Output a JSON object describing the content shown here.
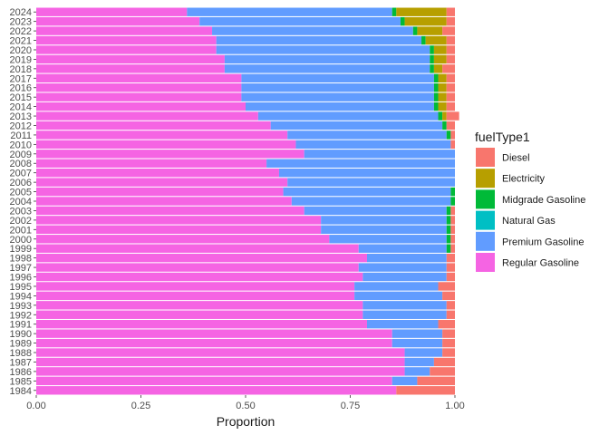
{
  "chart_data": {
    "type": "bar",
    "orientation": "horizontal",
    "stacked": true,
    "xlabel": "Proportion",
    "ylabel": "",
    "xlim": [
      0,
      1
    ],
    "x_ticks": [
      "0.00",
      "0.25",
      "0.50",
      "0.75",
      "1.00"
    ],
    "legend_title": "fuelType1",
    "legend_position": "right",
    "grid": false,
    "series": [
      {
        "name": "Diesel",
        "color": "#F8766D"
      },
      {
        "name": "Electricity",
        "color": "#B79F00"
      },
      {
        "name": "Midgrade Gasoline",
        "color": "#00BA38"
      },
      {
        "name": "Natural Gas",
        "color": "#00BFC4"
      },
      {
        "name": "Premium Gasoline",
        "color": "#619CFF"
      },
      {
        "name": "Regular Gasoline",
        "color": "#F564E3"
      }
    ],
    "stack_order": [
      "Regular Gasoline",
      "Premium Gasoline",
      "Natural Gas",
      "Midgrade Gasoline",
      "Electricity",
      "Diesel"
    ],
    "categories": [
      "1984",
      "1985",
      "1986",
      "1987",
      "1988",
      "1989",
      "1990",
      "1991",
      "1992",
      "1993",
      "1994",
      "1995",
      "1996",
      "1997",
      "1998",
      "1999",
      "2000",
      "2001",
      "2002",
      "2003",
      "2004",
      "2005",
      "2006",
      "2007",
      "2008",
      "2009",
      "2010",
      "2011",
      "2012",
      "2013",
      "2014",
      "2015",
      "2016",
      "2017",
      "2018",
      "2019",
      "2020",
      "2021",
      "2022",
      "2023",
      "2024"
    ],
    "values": {
      "Regular Gasoline": [
        0.86,
        0.85,
        0.88,
        0.88,
        0.88,
        0.85,
        0.85,
        0.79,
        0.78,
        0.78,
        0.76,
        0.76,
        0.78,
        0.77,
        0.79,
        0.77,
        0.7,
        0.68,
        0.68,
        0.64,
        0.61,
        0.59,
        0.6,
        0.58,
        0.55,
        0.64,
        0.62,
        0.6,
        0.56,
        0.53,
        0.5,
        0.49,
        0.49,
        0.49,
        0.45,
        0.45,
        0.43,
        0.43,
        0.42,
        0.39,
        0.36
      ],
      "Premium Gasoline": [
        0.0,
        0.06,
        0.06,
        0.07,
        0.09,
        0.12,
        0.12,
        0.17,
        0.2,
        0.2,
        0.21,
        0.2,
        0.2,
        0.21,
        0.19,
        0.21,
        0.28,
        0.3,
        0.3,
        0.34,
        0.38,
        0.4,
        0.4,
        0.42,
        0.45,
        0.36,
        0.37,
        0.38,
        0.41,
        0.43,
        0.45,
        0.46,
        0.46,
        0.46,
        0.49,
        0.49,
        0.51,
        0.49,
        0.48,
        0.48,
        0.49
      ],
      "Natural Gas": [
        0.0,
        0.0,
        0.0,
        0.0,
        0.0,
        0.0,
        0.0,
        0.0,
        0.0,
        0.0,
        0.0,
        0.0,
        0.0,
        0.0,
        0.0,
        0.0,
        0.0,
        0.0,
        0.0,
        0.0,
        0.0,
        0.0,
        0.0,
        0.0,
        0.0,
        0.0,
        0.0,
        0.0,
        0.0,
        0.0,
        0.0,
        0.0,
        0.0,
        0.0,
        0.0,
        0.0,
        0.0,
        0.0,
        0.0,
        0.0,
        0.0
      ],
      "Midgrade Gasoline": [
        0.0,
        0.0,
        0.0,
        0.0,
        0.0,
        0.0,
        0.0,
        0.0,
        0.0,
        0.0,
        0.0,
        0.0,
        0.0,
        0.0,
        0.0,
        0.01,
        0.01,
        0.01,
        0.01,
        0.01,
        0.01,
        0.01,
        0.0,
        0.0,
        0.0,
        0.0,
        0.0,
        0.01,
        0.01,
        0.01,
        0.01,
        0.01,
        0.01,
        0.01,
        0.01,
        0.01,
        0.01,
        0.01,
        0.01,
        0.01,
        0.01
      ],
      "Electricity": [
        0.0,
        0.0,
        0.0,
        0.0,
        0.0,
        0.0,
        0.0,
        0.0,
        0.0,
        0.0,
        0.0,
        0.0,
        0.0,
        0.0,
        0.0,
        0.0,
        0.0,
        0.0,
        0.0,
        0.0,
        0.0,
        0.0,
        0.0,
        0.0,
        0.0,
        0.0,
        0.0,
        0.0,
        0.0,
        0.01,
        0.02,
        0.02,
        0.02,
        0.02,
        0.02,
        0.03,
        0.03,
        0.05,
        0.06,
        0.1,
        0.12
      ],
      "Diesel": [
        0.14,
        0.09,
        0.06,
        0.05,
        0.03,
        0.03,
        0.03,
        0.04,
        0.02,
        0.02,
        0.03,
        0.04,
        0.02,
        0.02,
        0.02,
        0.01,
        0.01,
        0.01,
        0.01,
        0.01,
        0.0,
        0.0,
        0.0,
        0.0,
        0.0,
        0.0,
        0.01,
        0.01,
        0.02,
        0.03,
        0.02,
        0.02,
        0.02,
        0.02,
        0.03,
        0.02,
        0.02,
        0.02,
        0.03,
        0.02,
        0.02
      ]
    }
  }
}
